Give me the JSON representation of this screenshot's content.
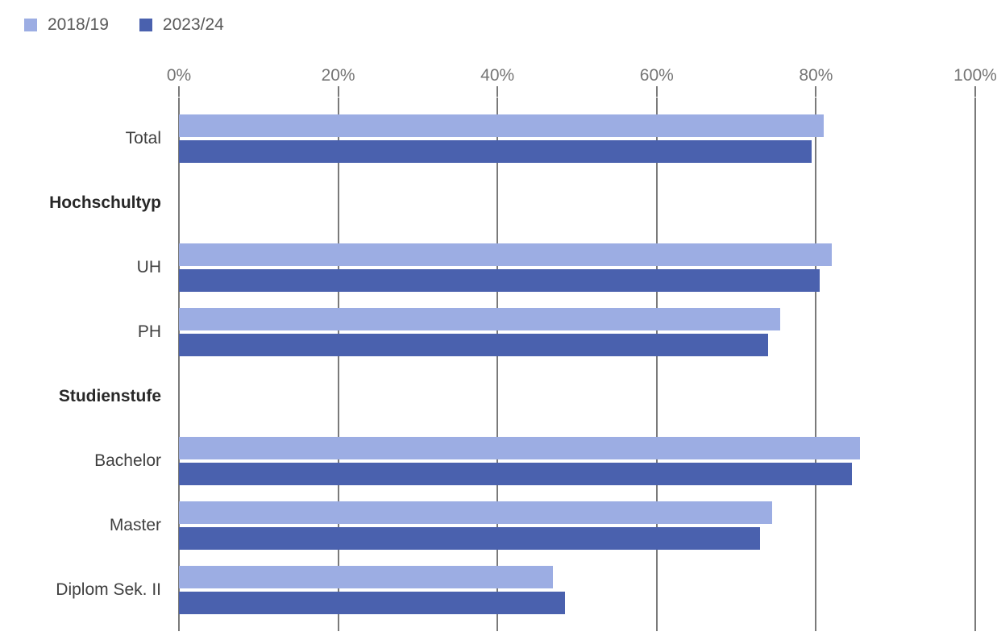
{
  "chart_data": {
    "type": "bar",
    "orientation": "horizontal",
    "title": "",
    "xlabel": "",
    "ylabel": "",
    "xlim": [
      0,
      100
    ],
    "x_tick_labels": [
      "0%",
      "20%",
      "40%",
      "60%",
      "80%",
      "100%"
    ],
    "grid": true,
    "legend_position": "top-left",
    "categories": [
      "Total",
      "Hochschultyp",
      "UH",
      "PH",
      "Studienstufe",
      "Bachelor",
      "Master",
      "Diplom Sek. II"
    ],
    "header_row_indexes": [
      1,
      4
    ],
    "series": [
      {
        "name": "2018/19",
        "color": "#9cade3",
        "values": [
          81,
          null,
          82,
          75.5,
          null,
          85.5,
          74.5,
          47
        ]
      },
      {
        "name": "2023/24",
        "color": "#4a61ae",
        "values": [
          79.5,
          null,
          80.5,
          74,
          null,
          84.5,
          73,
          48.5
        ]
      }
    ],
    "colors": {
      "gridline": "#7a7a7a",
      "axis_label_text": "#757575",
      "legend_text": "#595959",
      "category_text": "#3f3f3f",
      "category_header_text": "#282828"
    }
  }
}
